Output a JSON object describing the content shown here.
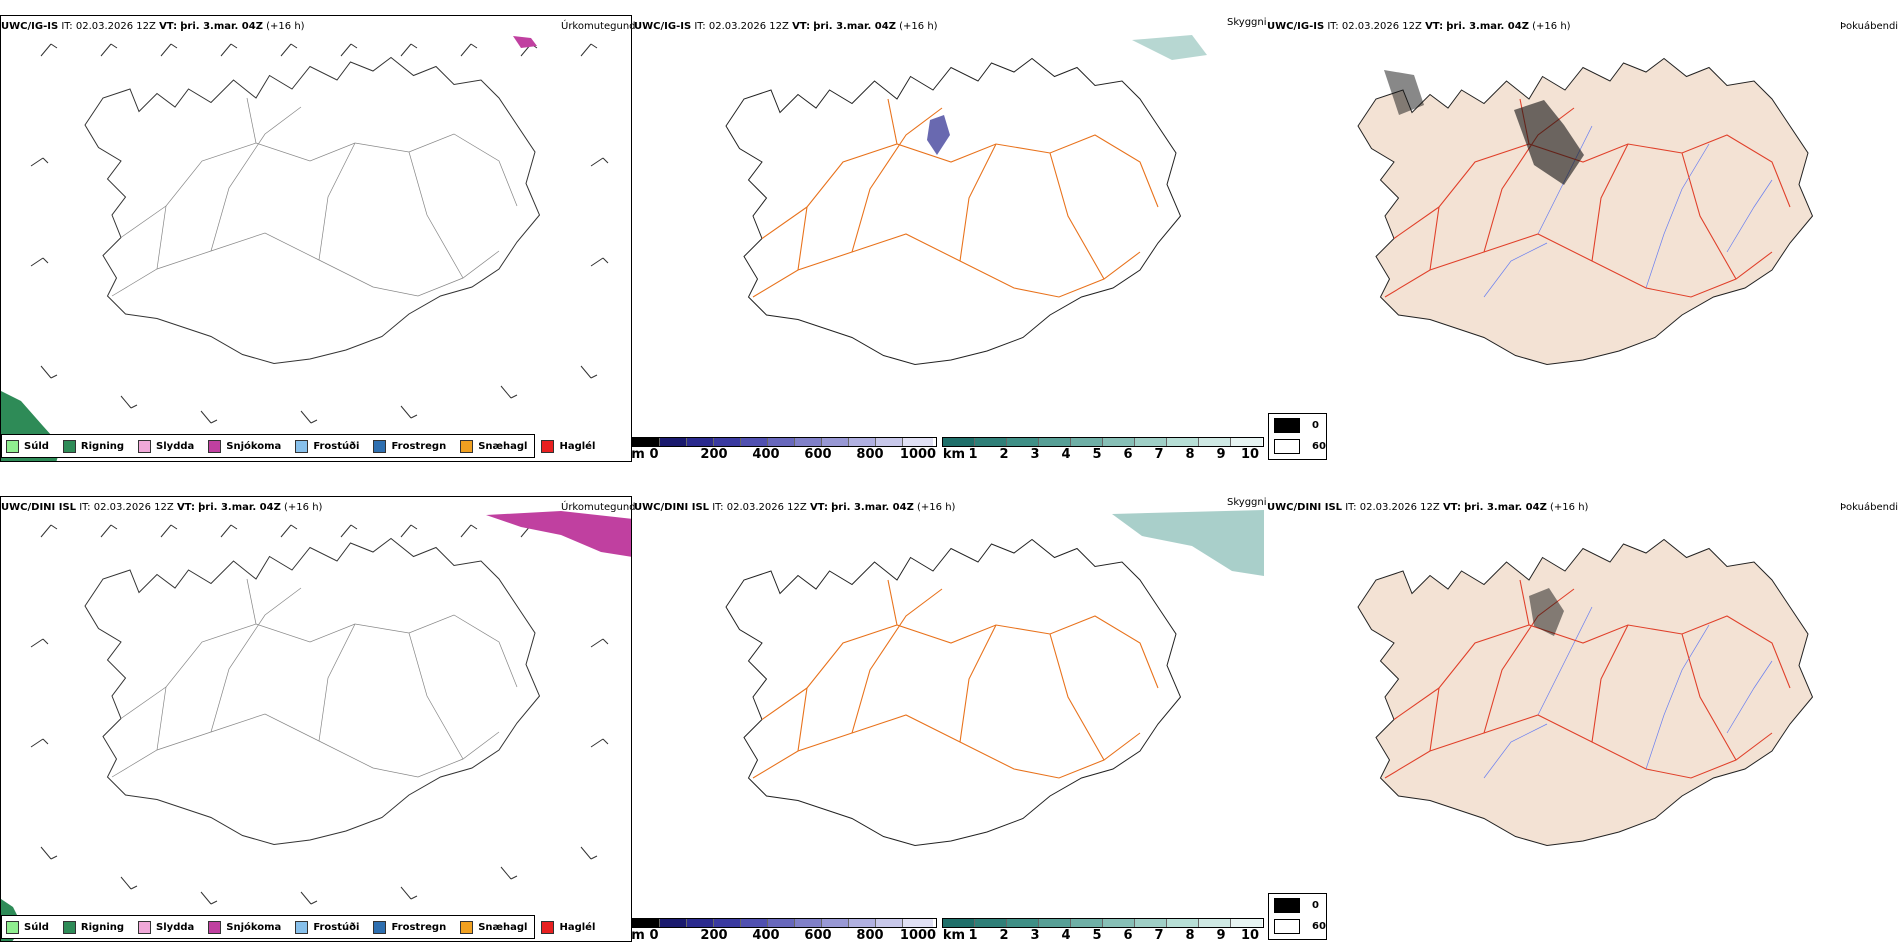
{
  "rows": [
    {
      "model": "UWC/IG-IS",
      "it_label": "IT:",
      "it_value": "02.03.2026 12Z",
      "vt_label": "VT:",
      "vt_value": "þri. 3.mar. 04Z",
      "lead": "(+16 h)"
    },
    {
      "model": "UWC/DINI ISL",
      "it_label": "IT:",
      "it_value": "02.03.2026 12Z",
      "vt_label": "VT:",
      "vt_value": "þri. 3.mar. 04Z",
      "lead": "(+16 h)"
    }
  ],
  "panels": {
    "precip_type": {
      "title": "Úrkomutegund",
      "legend": [
        {
          "label": "Súld",
          "color": "#90ee90"
        },
        {
          "label": "Rigning",
          "color": "#2e8b57"
        },
        {
          "label": "Slydda",
          "color": "#f0a8d8"
        },
        {
          "label": "Snjókoma",
          "color": "#c040a0"
        },
        {
          "label": "Frostúði",
          "color": "#87c0eb"
        },
        {
          "label": "Frostregn",
          "color": "#2e6fb0"
        },
        {
          "label": "Snæhagl",
          "color": "#f0a020"
        },
        {
          "label": "Haglél",
          "color": "#e82020"
        }
      ]
    },
    "visibility": {
      "title": "Skyggni",
      "cloudbase_unit": "m",
      "cloudbase_ticks": [
        "0",
        "200",
        "400",
        "600",
        "800",
        "1000"
      ],
      "cloudbase_colors": [
        "#000000",
        "#1a1a6e",
        "#2a2a8e",
        "#3a3aa0",
        "#5050b0",
        "#6868bc",
        "#8080c8",
        "#9898d4",
        "#b0b0e0",
        "#c8c8ea",
        "#e0e0f4"
      ],
      "vis_unit": "km",
      "vis_ticks": [
        "1",
        "2",
        "3",
        "4",
        "5",
        "6",
        "7",
        "8",
        "9",
        "10"
      ],
      "vis_colors": [
        "#1f6f6a",
        "#2f7f78",
        "#3f8f86",
        "#579f96",
        "#6fafa6",
        "#87bfb6",
        "#9fcfc6",
        "#b7dfd6",
        "#cfe9e4",
        "#e7f4f2"
      ]
    },
    "fog": {
      "title": "Þokuábendi",
      "legend": [
        {
          "label": "0",
          "color": "#000000"
        },
        {
          "label": "60",
          "color": "#ffffff"
        }
      ]
    }
  },
  "colors": {
    "roads": "#e8721c",
    "fog_land": "#f3e2d4",
    "fog_roads": "#e0402a",
    "rivers": "#6a7ff0",
    "rain_green": "#2e8b57",
    "snow_magenta": "#c040a0",
    "cloud_teal": "#6fafa6"
  }
}
